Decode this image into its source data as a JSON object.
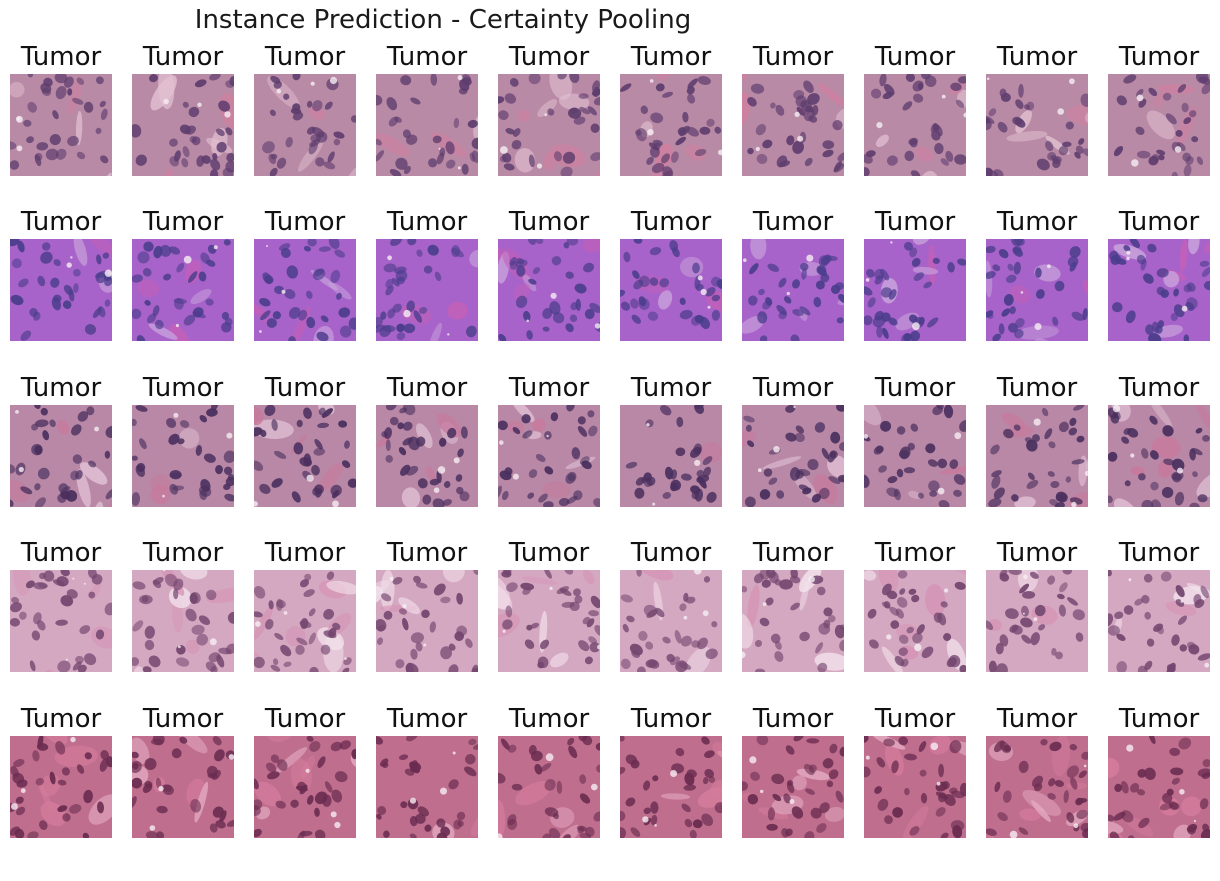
{
  "figure": {
    "title": "Instance Prediction - Certainty Pooling"
  },
  "rows": [
    {
      "stain": {
        "base": "#b98aa6",
        "dark": "#5e3d6e",
        "light": "#e1bfd0",
        "accent": "#d07fa0"
      },
      "tiles": [
        {
          "label": "Tumor"
        },
        {
          "label": "Tumor"
        },
        {
          "label": "Tumor"
        },
        {
          "label": "Tumor"
        },
        {
          "label": "Tumor"
        },
        {
          "label": "Tumor"
        },
        {
          "label": "Tumor"
        },
        {
          "label": "Tumor"
        },
        {
          "label": "Tumor"
        },
        {
          "label": "Tumor"
        }
      ]
    },
    {
      "stain": {
        "base": "#a763c9",
        "dark": "#4b3d8c",
        "light": "#c9a3dc",
        "accent": "#c45fb8"
      },
      "tiles": [
        {
          "label": "Tumor"
        },
        {
          "label": "Tumor"
        },
        {
          "label": "Tumor"
        },
        {
          "label": "Tumor"
        },
        {
          "label": "Tumor"
        },
        {
          "label": "Tumor"
        },
        {
          "label": "Tumor"
        },
        {
          "label": "Tumor"
        },
        {
          "label": "Tumor"
        },
        {
          "label": "Tumor"
        }
      ]
    },
    {
      "stain": {
        "base": "#b888a6",
        "dark": "#4a2f5e",
        "light": "#e2c2d6",
        "accent": "#c8799c"
      },
      "tiles": [
        {
          "label": "Tumor"
        },
        {
          "label": "Tumor"
        },
        {
          "label": "Tumor"
        },
        {
          "label": "Tumor"
        },
        {
          "label": "Tumor"
        },
        {
          "label": "Tumor"
        },
        {
          "label": "Tumor"
        },
        {
          "label": "Tumor"
        },
        {
          "label": "Tumor"
        },
        {
          "label": "Tumor"
        }
      ]
    },
    {
      "stain": {
        "base": "#d5a8c2",
        "dark": "#73466f",
        "light": "#f3e2ec",
        "accent": "#d593b4"
      },
      "tiles": [
        {
          "label": "Tumor"
        },
        {
          "label": "Tumor"
        },
        {
          "label": "Tumor"
        },
        {
          "label": "Tumor"
        },
        {
          "label": "Tumor"
        },
        {
          "label": "Tumor"
        },
        {
          "label": "Tumor"
        },
        {
          "label": "Tumor"
        },
        {
          "label": "Tumor"
        },
        {
          "label": "Tumor"
        }
      ]
    },
    {
      "stain": {
        "base": "#bf6e8e",
        "dark": "#6a2c50",
        "light": "#e3a9c0",
        "accent": "#d67c9c"
      },
      "tiles": [
        {
          "label": "Tumor"
        },
        {
          "label": "Tumor"
        },
        {
          "label": "Tumor"
        },
        {
          "label": "Tumor"
        },
        {
          "label": "Tumor"
        },
        {
          "label": "Tumor"
        },
        {
          "label": "Tumor"
        },
        {
          "label": "Tumor"
        },
        {
          "label": "Tumor"
        },
        {
          "label": "Tumor"
        }
      ]
    }
  ]
}
